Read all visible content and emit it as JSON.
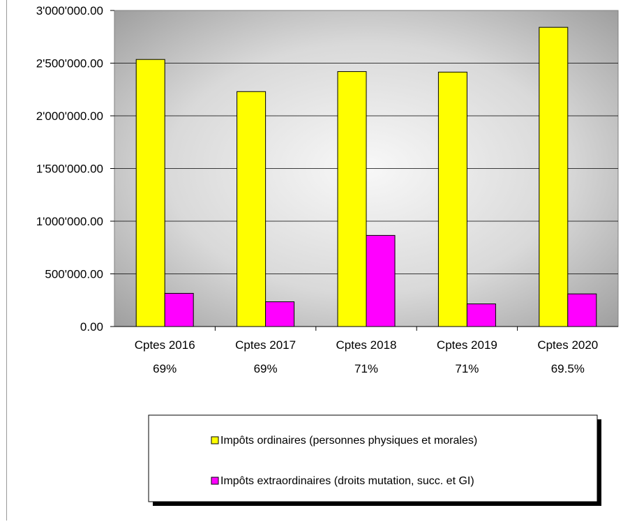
{
  "chart_data": {
    "type": "bar",
    "categories": [
      "Cptes 2016",
      "Cptes 2017",
      "Cptes 2018",
      "Cptes 2019",
      "Cptes 2020"
    ],
    "category_sublabels": [
      "69%",
      "69%",
      "71%",
      "71%",
      "69.5%"
    ],
    "series": [
      {
        "name": "Impôts ordinaires (personnes physiques et morales)",
        "color": "#ffff00",
        "values": [
          2535000,
          2230000,
          2420000,
          2415000,
          2840000
        ]
      },
      {
        "name": "Impôts extraordinaires (droits mutation, succ. et GI)",
        "color": "#ff00ff",
        "values": [
          315000,
          235000,
          865000,
          215000,
          310000
        ]
      }
    ],
    "y_ticks": [
      "0.00",
      "500'000.00",
      "1'000'000.00",
      "1'500'000.00",
      "2'000'000.00",
      "2'500'000.00",
      "3'000'000.00"
    ],
    "ylim": [
      0,
      3000000
    ],
    "title": "",
    "xlabel": "",
    "ylabel": "",
    "grid": true,
    "legend_position": "bottom"
  }
}
